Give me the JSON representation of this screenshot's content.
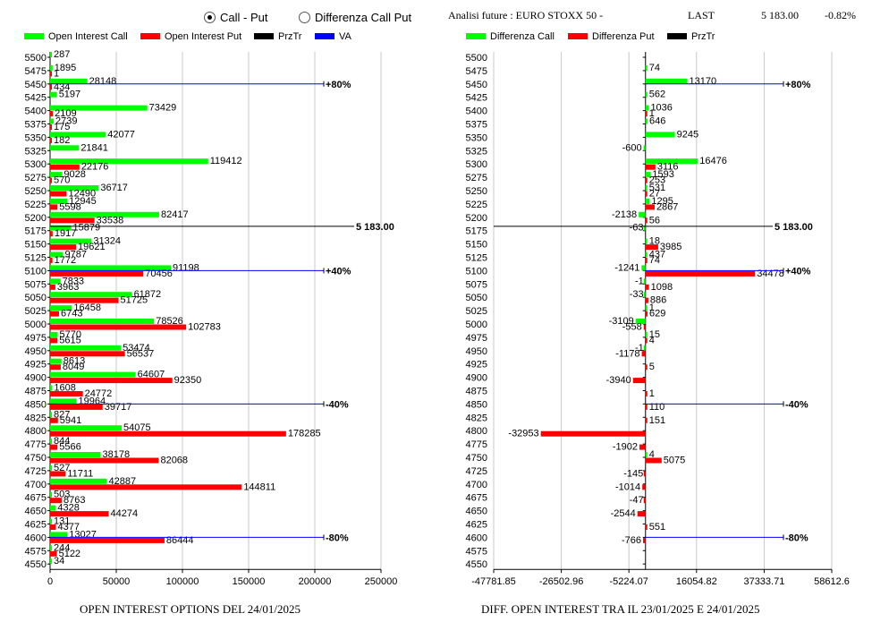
{
  "header": {
    "radio_options": [
      {
        "label": "Call - Put",
        "selected": true
      },
      {
        "label": "Differenza Call Put",
        "selected": false
      }
    ],
    "instrument": "Analisi future : EURO STOXX 50 -",
    "last_label": "LAST",
    "last_value": "5 183.00",
    "change": "-0.82%"
  },
  "colors": {
    "call": "#00ff00",
    "put": "#ff0000",
    "przt": "#000000",
    "va": "#0000ff"
  },
  "left_legend": [
    "Open Interest Call",
    "Open Interest Put",
    "PrzTr",
    "VA"
  ],
  "right_legend": [
    "Differenza Call",
    "Differenza Put",
    "PrzTr"
  ],
  "chart_data": [
    {
      "type": "bar",
      "orientation": "horizontal",
      "categories": [
        5500,
        5475,
        5450,
        5425,
        5400,
        5375,
        5350,
        5325,
        5300,
        5275,
        5250,
        5225,
        5200,
        5175,
        5150,
        5125,
        5100,
        5075,
        5050,
        5025,
        5000,
        4975,
        4950,
        4925,
        4900,
        4875,
        4850,
        4825,
        4800,
        4775,
        4750,
        4725,
        4700,
        4675,
        4650,
        4625,
        4600,
        4575,
        4550
      ],
      "series": [
        {
          "name": "Open Interest Call",
          "values": [
            287,
            1895,
            28148,
            5197,
            73429,
            2739,
            42077,
            21841,
            119412,
            9028,
            36717,
            12945,
            82417,
            15879,
            31324,
            9787,
            91198,
            7833,
            61872,
            16458,
            78526,
            5770,
            53474,
            8613,
            64607,
            1608,
            19964,
            827,
            54075,
            844,
            38178,
            527,
            42887,
            503,
            4328,
            131,
            13027,
            244,
            34
          ]
        },
        {
          "name": "Open Interest Put",
          "values": [
            null,
            1,
            434,
            null,
            2109,
            175,
            182,
            null,
            22176,
            570,
            12490,
            5598,
            33538,
            1917,
            19621,
            1772,
            70456,
            3963,
            51725,
            6743,
            102783,
            5615,
            56537,
            8049,
            92350,
            24772,
            39717,
            5941,
            178285,
            5566,
            82068,
            11711,
            144811,
            8763,
            44274,
            4377,
            86444,
            5122,
            null
          ]
        }
      ],
      "xticks": [
        "0",
        "50000",
        "100000",
        "150000",
        "200000",
        "250000"
      ],
      "xlim": [
        0,
        250000
      ],
      "price_line": {
        "price": 5183,
        "label": "5183.00"
      },
      "levels": [
        {
          "price": 5450,
          "label": "+80%"
        },
        {
          "price": 5100,
          "label": "+40%"
        },
        {
          "price": 4850,
          "label": "-40%"
        },
        {
          "price": 4600,
          "label": "-80%"
        }
      ],
      "footer": "OPEN INTEREST OPTIONS DEL 24/01/2025"
    },
    {
      "type": "bar",
      "orientation": "horizontal",
      "categories": [
        5500,
        5475,
        5450,
        5425,
        5400,
        5375,
        5350,
        5325,
        5300,
        5275,
        5250,
        5225,
        5200,
        5175,
        5150,
        5125,
        5100,
        5075,
        5050,
        5025,
        5000,
        4975,
        4950,
        4925,
        4900,
        4875,
        4850,
        4825,
        4800,
        4775,
        4750,
        4725,
        4700,
        4675,
        4650,
        4625,
        4600,
        4575,
        4550
      ],
      "series": [
        {
          "name": "Differenza Call",
          "values": [
            null,
            74,
            13170,
            562,
            1036,
            646,
            9245,
            -600,
            16476,
            1593,
            531,
            1295,
            -2138,
            -63,
            18,
            437,
            -1241,
            -1,
            -33,
            1,
            -3109,
            15,
            -1,
            null,
            null,
            null,
            null,
            null,
            null,
            null,
            4,
            null,
            null,
            null,
            null,
            null,
            null,
            null,
            null
          ]
        },
        {
          "name": "Differenza Put",
          "values": [
            null,
            null,
            null,
            null,
            1,
            null,
            null,
            null,
            3116,
            253,
            27,
            2867,
            56,
            null,
            3985,
            74,
            34478,
            1098,
            886,
            629,
            -558,
            4,
            -1178,
            5,
            -3940,
            1,
            110,
            151,
            -32953,
            -1902,
            5075,
            -145,
            -1014,
            -47,
            -2544,
            551,
            -766,
            null,
            null
          ]
        }
      ],
      "xticks": [
        "-47781.85",
        "-26502.96",
        "-5224.07",
        "16054.82",
        "37333.71",
        "58612.6"
      ],
      "xlim": [
        -47781.85,
        58612.6
      ],
      "price_line": {
        "price": 5183,
        "label": "5183.00"
      },
      "levels": [
        {
          "price": 5450,
          "label": "+80%"
        },
        {
          "price": 5100,
          "label": "+40%"
        },
        {
          "price": 4850,
          "label": "-40%"
        },
        {
          "price": 4600,
          "label": "-80%"
        }
      ],
      "footer": "DIFF. OPEN INTEREST TRA IL 23/01/2025 E 24/01/2025"
    }
  ]
}
